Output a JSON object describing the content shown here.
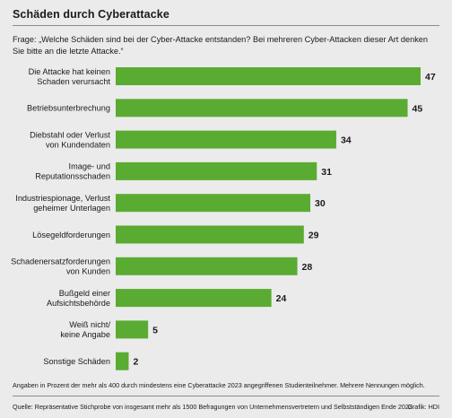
{
  "header": {
    "title": "Schäden durch Cyberattacke",
    "question": "Frage: „Welche Schäden sind bei der Cyber-Attacke entstanden? Bei mehreren Cyber-Attacken dieser Art denken Sie bitte an die letzte Attacke.“"
  },
  "colors": {
    "bar": "#5aab32",
    "background": "#ebebeb"
  },
  "chart_data": {
    "type": "bar",
    "orientation": "horizontal",
    "title": "Schäden durch Cyberattacke",
    "categories": [
      [
        "Die Attacke hat keinen",
        "Schaden verursacht"
      ],
      [
        "Betriebsunterbrechung"
      ],
      [
        "Diebstahl oder Verlust",
        "von Kundendaten"
      ],
      [
        "Image- und",
        "Reputationsschaden"
      ],
      [
        "Industriespionage, Verlust",
        "geheimer Unterlagen"
      ],
      [
        "Lösegeldforderungen"
      ],
      [
        "Schadenersatzforderungen",
        "von Kunden"
      ],
      [
        "Bußgeld einer",
        "Aufsichtsbehörde"
      ],
      [
        "Weiß nicht/",
        "keine Angabe"
      ],
      [
        "Sonstige Schäden"
      ]
    ],
    "values": [
      47,
      45,
      34,
      31,
      30,
      29,
      28,
      24,
      5,
      2
    ],
    "xlim": [
      0,
      47
    ],
    "grid": false,
    "data_labels": true
  },
  "footer": {
    "note": "Angaben in Prozent der mehr als 400 durch mindestens eine Cyberattacke 2023 angegriffenen Studienteilnehmer. Mehrere Nennungen möglich.",
    "source": "Quelle: Repräsentative Stichprobe von insgesamt mehr als 1500 Befragungen von Unternehmensvertretern und Selbstständigen Ende 2023.",
    "credit": "Grafik: HDI"
  }
}
